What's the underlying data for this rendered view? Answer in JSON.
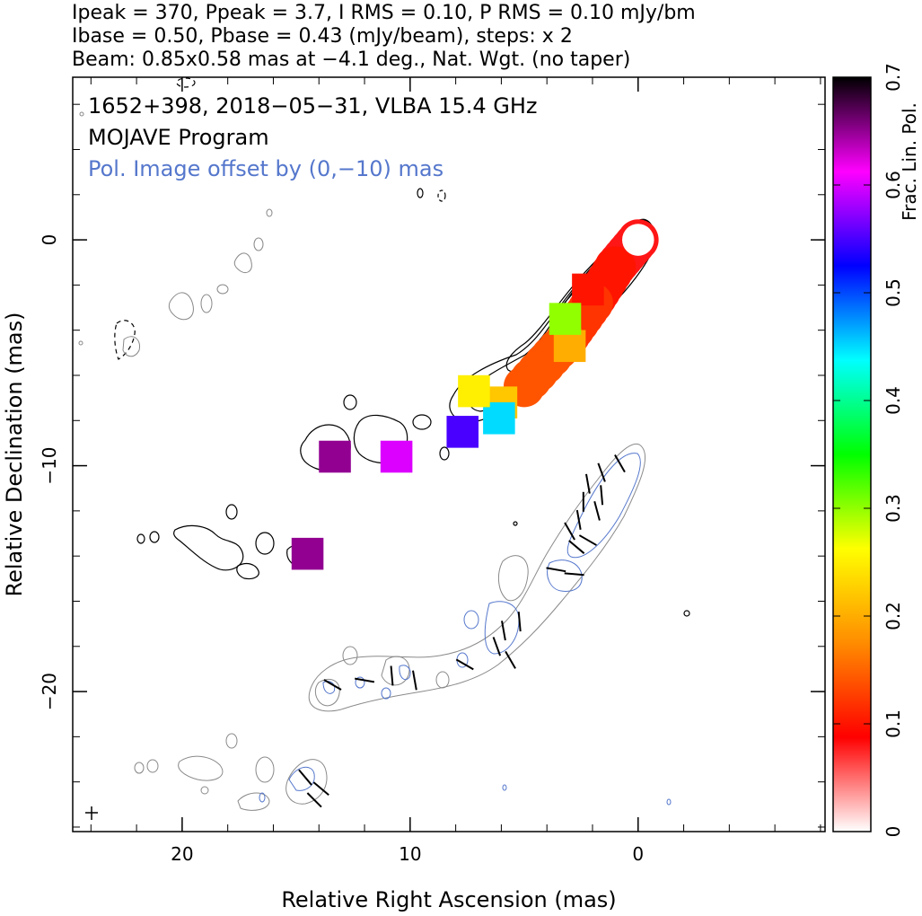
{
  "header": {
    "line1": "Ipeak = 370, Ppeak = 3.7, I RMS = 0.10, P RMS = 0.10 mJy/bm",
    "line2": "Ibase = 0.50, Pbase = 0.43 (mJy/beam), steps: x 2",
    "line3": "Beam: 0.85x0.58 mas at −4.1 deg., Nat. Wgt. (no taper)"
  },
  "chart_data": {
    "type": "contour",
    "title": "1652+398, 2018−05−31, VLBA 15.4 GHz",
    "subtitle": "MOJAVE Program",
    "annotation": "Pol. Image offset by (0,−10) mas",
    "xlabel": "Relative Right Ascension (mas)",
    "ylabel": "Relative Declination (mas)",
    "xlim": [
      24.8,
      -8.2
    ],
    "ylim": [
      -26.2,
      7.2
    ],
    "x_ticks": [
      {
        "value": 20,
        "label": "20"
      },
      {
        "value": 10,
        "label": "10"
      },
      {
        "value": 0,
        "label": "0"
      }
    ],
    "y_ticks": [
      {
        "value": 0,
        "label": "0"
      },
      {
        "value": -10,
        "label": "−10"
      },
      {
        "value": -20,
        "label": "−20"
      }
    ],
    "colorbar": {
      "label": "Frac. Lin. Pol.",
      "range": [
        0,
        0.7
      ],
      "ticks": [
        {
          "value": 0,
          "label": "0"
        },
        {
          "value": 0.1,
          "label": "0.1"
        },
        {
          "value": 0.2,
          "label": "0.2"
        },
        {
          "value": 0.3,
          "label": "0.3"
        },
        {
          "value": 0.4,
          "label": "0.4"
        },
        {
          "value": 0.5,
          "label": "0.5"
        },
        {
          "value": 0.6,
          "label": "0.6"
        },
        {
          "value": 0.7,
          "label": "0.7"
        }
      ],
      "stops": [
        "#ffffff",
        "#ff0000",
        "#ff8c00",
        "#ffff00",
        "#00ff00",
        "#00ffff",
        "#0000ff",
        "#ff00ff",
        "#000000"
      ]
    },
    "core": {
      "x": 0,
      "y": 0
    },
    "total_intensity_jet": [
      [
        0,
        0
      ],
      [
        1,
        -1.2
      ],
      [
        2,
        -2.8
      ],
      [
        3.2,
        -4.5
      ],
      [
        5,
        -6.5
      ],
      [
        6.5,
        -7.3
      ],
      [
        7.8,
        -8.2
      ]
    ],
    "polarization_jet": [
      [
        0.5,
        -10
      ],
      [
        1.5,
        -11.7
      ],
      [
        3.2,
        -13.8
      ],
      [
        4.8,
        -16.5
      ],
      [
        6.2,
        -18.3
      ],
      [
        8,
        -19.3
      ],
      [
        10,
        -19.3
      ],
      [
        12.5,
        -19.8
      ],
      [
        15.5,
        -19.8
      ]
    ],
    "fractional_pol_patches": [
      {
        "x": 2.2,
        "y": -2.2,
        "value": 0.1
      },
      {
        "x": 3,
        "y": -4.7,
        "value": 0.2
      },
      {
        "x": 3.2,
        "y": -3.5,
        "value": 0.3
      },
      {
        "x": 6,
        "y": -7.2,
        "value": 0.22
      },
      {
        "x": 6.1,
        "y": -7.9,
        "value": 0.45
      },
      {
        "x": 7.2,
        "y": -6.7,
        "value": 0.25
      },
      {
        "x": 7.7,
        "y": -8.5,
        "value": 0.55
      },
      {
        "x": 13.3,
        "y": -9.6,
        "value": 0.65
      },
      {
        "x": 10.6,
        "y": -9.6,
        "value": 0.6
      },
      {
        "x": 14.5,
        "y": -13.9,
        "value": 0.65
      }
    ],
    "evpa_sticks": [
      {
        "x": 0.8,
        "y": -9.9,
        "angle": 60
      },
      {
        "x": 1.6,
        "y": -10.3,
        "angle": 70
      },
      {
        "x": 2.2,
        "y": -10.8,
        "angle": 80
      },
      {
        "x": 1.6,
        "y": -11.3,
        "angle": 85
      },
      {
        "x": 2.4,
        "y": -11.6,
        "angle": 90
      },
      {
        "x": 1.8,
        "y": -12,
        "angle": 75
      },
      {
        "x": 2.6,
        "y": -12.4,
        "angle": 80
      },
      {
        "x": 3,
        "y": -12.9,
        "angle": 60
      },
      {
        "x": 2.2,
        "y": -13.3,
        "angle": 30
      },
      {
        "x": 2.7,
        "y": -13.6,
        "angle": 40
      },
      {
        "x": 3.6,
        "y": -14.6,
        "angle": 10
      },
      {
        "x": 2.8,
        "y": -14.8,
        "angle": 5
      },
      {
        "x": 5.2,
        "y": -16.9,
        "angle": 85
      },
      {
        "x": 5.9,
        "y": -17.3,
        "angle": 80
      },
      {
        "x": 6.2,
        "y": -18,
        "angle": 70
      },
      {
        "x": 5.6,
        "y": -18.6,
        "angle": 60
      },
      {
        "x": 7.6,
        "y": -18.8,
        "angle": 30
      },
      {
        "x": 9.8,
        "y": -19.5,
        "angle": 80
      },
      {
        "x": 10.8,
        "y": -19.3,
        "angle": 85
      },
      {
        "x": 12,
        "y": -19.5,
        "angle": 10
      },
      {
        "x": 13.4,
        "y": -19.7,
        "angle": 30
      },
      {
        "x": 14.6,
        "y": -23.8,
        "angle": 50
      },
      {
        "x": 13.9,
        "y": -24.3,
        "angle": 40
      },
      {
        "x": 14.2,
        "y": -24.8,
        "angle": 45
      }
    ]
  }
}
